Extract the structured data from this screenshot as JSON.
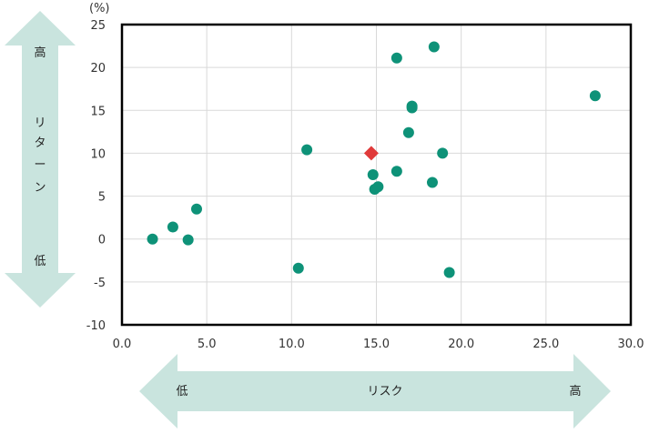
{
  "chart_data": {
    "type": "scatter",
    "ylabel_unit": "(%)",
    "xlim": [
      0,
      30
    ],
    "ylim": [
      -10,
      25
    ],
    "x_ticks": [
      "0.0",
      "5.0",
      "10.0",
      "15.0",
      "20.0",
      "25.0",
      "30.0"
    ],
    "y_ticks": [
      "-10",
      "-5",
      "0",
      "5",
      "10",
      "15",
      "20",
      "25"
    ],
    "grid": true,
    "y_arrow": {
      "title_chars": [
        "リ",
        "タ",
        "ー",
        "ン"
      ],
      "high": "高",
      "low": "低"
    },
    "x_arrow": {
      "title": "リスク",
      "high": "高",
      "low": "低"
    },
    "series": [
      {
        "color": "#0e9278",
        "marker": "circle",
        "points": [
          {
            "x": 1.8,
            "y": 0.0
          },
          {
            "x": 3.0,
            "y": 1.4
          },
          {
            "x": 3.9,
            "y": -0.1
          },
          {
            "x": 4.4,
            "y": 3.5
          },
          {
            "x": 10.4,
            "y": -3.4
          },
          {
            "x": 10.9,
            "y": 10.4
          },
          {
            "x": 14.8,
            "y": 7.5
          },
          {
            "x": 14.9,
            "y": 5.8
          },
          {
            "x": 15.1,
            "y": 6.1
          },
          {
            "x": 16.2,
            "y": 7.9
          },
          {
            "x": 16.2,
            "y": 21.1
          },
          {
            "x": 16.9,
            "y": 12.4
          },
          {
            "x": 17.1,
            "y": 15.3
          },
          {
            "x": 17.1,
            "y": 15.5
          },
          {
            "x": 18.3,
            "y": 6.6
          },
          {
            "x": 18.4,
            "y": 22.4
          },
          {
            "x": 18.9,
            "y": 10.0
          },
          {
            "x": 19.3,
            "y": -3.9
          },
          {
            "x": 27.9,
            "y": 16.7
          }
        ]
      },
      {
        "color": "#e03a3a",
        "marker": "diamond",
        "points": [
          {
            "x": 14.7,
            "y": 10.0
          }
        ]
      }
    ]
  }
}
